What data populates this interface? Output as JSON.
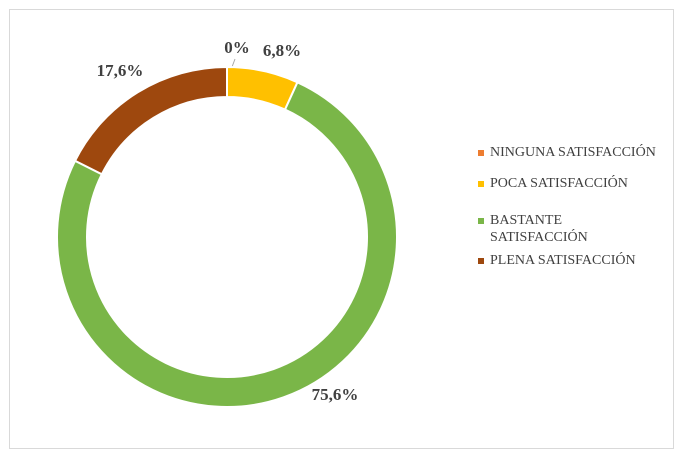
{
  "chart_data": {
    "type": "pie",
    "categories": [
      "NINGUNA SATISFACCIÓN",
      "POCA SATISFACCIÓN",
      "BASTANTE SATISFACCIÓN",
      "PLENA SATISFACCIÓN"
    ],
    "values": [
      0,
      6.8,
      75.6,
      17.6
    ],
    "value_labels": [
      "0%",
      "6,8%",
      "75,6%",
      "17,6%"
    ],
    "colors": [
      "#ed7d31",
      "#ffc000",
      "#7ab648",
      "#9e480e"
    ],
    "donut": true,
    "legend": "right"
  }
}
